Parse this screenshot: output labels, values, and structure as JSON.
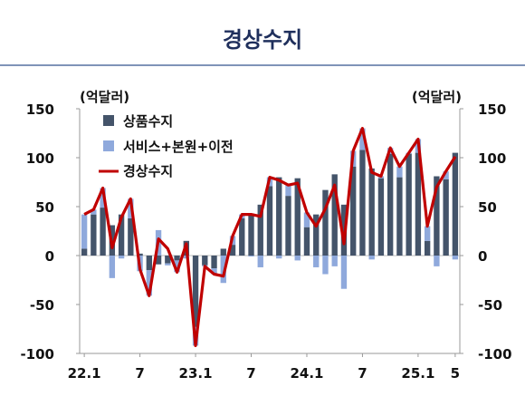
{
  "title": "경상수지",
  "colors": {
    "title": "#1f2f5c",
    "goods": "#44546a",
    "services": "#8fa9dc",
    "current": "#c00000"
  },
  "chart_data": {
    "type": "bar+line",
    "title": "경상수지",
    "ylabel_left": "(억달러)",
    "ylabel_right": "(억달러)",
    "ylim": [
      -100,
      150
    ],
    "yticks": [
      -100,
      -50,
      0,
      50,
      100,
      150
    ],
    "x_tick_labels": [
      {
        "index": 0,
        "label": "22.1"
      },
      {
        "index": 6,
        "label": "7"
      },
      {
        "index": 12,
        "label": "23.1"
      },
      {
        "index": 18,
        "label": "7"
      },
      {
        "index": 24,
        "label": "24.1"
      },
      {
        "index": 30,
        "label": "7"
      },
      {
        "index": 36,
        "label": "25.1"
      },
      {
        "index": 40,
        "label": "5"
      }
    ],
    "legend": [
      "상품수지",
      "서비스+본원+이전",
      "경상수지"
    ],
    "series": [
      {
        "name": "상품수지",
        "type": "bar",
        "values": [
          7,
          42,
          49,
          31,
          42,
          38,
          2,
          -15,
          -9,
          -8,
          -5,
          15,
          -73,
          -10,
          -13,
          7,
          11,
          38,
          43,
          52,
          71,
          80,
          61,
          79,
          29,
          42,
          67,
          83,
          52,
          91,
          108,
          89,
          79,
          104,
          80,
          104,
          105,
          15,
          81,
          78,
          105
        ]
      },
      {
        "name": "서비스+본원+이전",
        "type": "bar",
        "values": [
          35,
          5,
          20,
          -23,
          -3,
          20,
          -16,
          -26,
          26,
          -2,
          -12,
          -3,
          -19,
          -1,
          -6,
          -28,
          9,
          4,
          -1,
          -12,
          9,
          -3,
          11,
          -5,
          15,
          -12,
          -19,
          -11,
          -34,
          16,
          22,
          -4,
          2,
          6,
          11,
          1,
          14,
          15,
          -11,
          8,
          -4
        ]
      },
      {
        "name": "경상수지",
        "type": "line",
        "values": [
          42,
          47,
          69,
          8,
          39,
          58,
          -14,
          -41,
          17,
          7,
          -17,
          12,
          -92,
          -11,
          -19,
          -21,
          20,
          42,
          42,
          40,
          80,
          77,
          72,
          74,
          44,
          30,
          48,
          72,
          12,
          107,
          130,
          85,
          81,
          110,
          91,
          105,
          119,
          30,
          70,
          86,
          101
        ]
      }
    ]
  }
}
